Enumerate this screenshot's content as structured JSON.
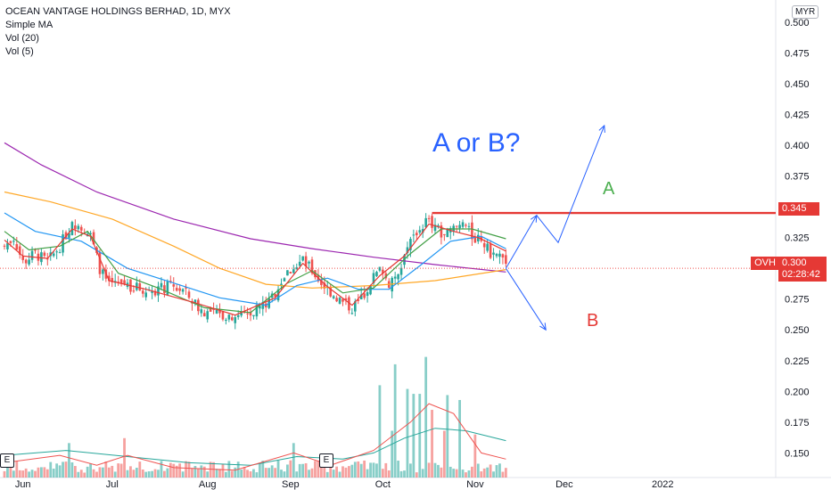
{
  "header": {
    "symbol_title": "OCEAN VANTAGE HOLDINGS BERHAD, 1D, MYX",
    "indicators": [
      "Simple MA",
      "Vol (20)",
      "Vol (5)"
    ],
    "currency": "MYR"
  },
  "annotations": {
    "question": "A or B?",
    "label_a": "A",
    "label_b": "B",
    "earnings_badge": "E"
  },
  "price_tags": {
    "resistance": "0.345",
    "ticker": "OVH",
    "last": "0.300",
    "countdown": "02:28:42"
  },
  "colors": {
    "up": "#26a69a",
    "down": "#ef5350",
    "ma_fast": "#43a047",
    "ma_short": "#e53935",
    "ma_mid": "#2196f3",
    "ma_long": "#ffa726",
    "ma_200": "#9c27b0",
    "question": "#2962ff",
    "label_a": "#4caf50",
    "label_b": "#e53935",
    "resistance": "#e53935",
    "arrows": "#2962ff"
  },
  "chart_data": {
    "type": "candlestick",
    "y_axis": {
      "min": 0.13,
      "max": 0.505,
      "ticks": [
        "0.500",
        "0.475",
        "0.450",
        "0.425",
        "0.400",
        "0.375",
        "0.350",
        "0.325",
        "0.300",
        "0.275",
        "0.250",
        "0.225",
        "0.200",
        "0.175",
        "0.150"
      ]
    },
    "x_axis": {
      "ticks": [
        {
          "label": "Jun",
          "day": 6
        },
        {
          "label": "Jul",
          "day": 35
        },
        {
          "label": "Aug",
          "day": 66
        },
        {
          "label": "Sep",
          "day": 93
        },
        {
          "label": "Oct",
          "day": 123
        },
        {
          "label": "Nov",
          "day": 153
        },
        {
          "label": "Dec",
          "day": 182
        },
        {
          "label": "2022",
          "day": 214
        }
      ],
      "total_days": 238
    },
    "price_anchors": [
      [
        0,
        0.318
      ],
      [
        3,
        0.325
      ],
      [
        6,
        0.305
      ],
      [
        10,
        0.312
      ],
      [
        14,
        0.305
      ],
      [
        18,
        0.318
      ],
      [
        21,
        0.332
      ],
      [
        24,
        0.338
      ],
      [
        28,
        0.326
      ],
      [
        31,
        0.3
      ],
      [
        34,
        0.285
      ],
      [
        38,
        0.288
      ],
      [
        42,
        0.285
      ],
      [
        46,
        0.282
      ],
      [
        50,
        0.283
      ],
      [
        54,
        0.285
      ],
      [
        58,
        0.282
      ],
      [
        61,
        0.274
      ],
      [
        64,
        0.266
      ],
      [
        67,
        0.263
      ],
      [
        71,
        0.262
      ],
      [
        75,
        0.262
      ],
      [
        79,
        0.263
      ],
      [
        82,
        0.268
      ],
      [
        86,
        0.272
      ],
      [
        90,
        0.29
      ],
      [
        94,
        0.302
      ],
      [
        97,
        0.306
      ],
      [
        100,
        0.298
      ],
      [
        103,
        0.288
      ],
      [
        106,
        0.281
      ],
      [
        110,
        0.272
      ],
      [
        113,
        0.268
      ],
      [
        116,
        0.275
      ],
      [
        119,
        0.29
      ],
      [
        122,
        0.298
      ],
      [
        125,
        0.288
      ],
      [
        128,
        0.298
      ],
      [
        131,
        0.318
      ],
      [
        134,
        0.33
      ],
      [
        137,
        0.338
      ],
      [
        140,
        0.335
      ],
      [
        143,
        0.325
      ],
      [
        146,
        0.332
      ],
      [
        149,
        0.337
      ],
      [
        152,
        0.326
      ],
      [
        155,
        0.322
      ],
      [
        158,
        0.312
      ],
      [
        161,
        0.31
      ],
      [
        163,
        0.3
      ]
    ],
    "moving_averages": [
      {
        "name": "SMA 200",
        "color_key": "ma_200",
        "points": [
          [
            0,
            0.402
          ],
          [
            12,
            0.384
          ],
          [
            30,
            0.362
          ],
          [
            55,
            0.34
          ],
          [
            80,
            0.324
          ],
          [
            100,
            0.316
          ],
          [
            120,
            0.309
          ],
          [
            140,
            0.303
          ],
          [
            163,
            0.297
          ]
        ]
      },
      {
        "name": "SMA 50",
        "color_key": "ma_long",
        "points": [
          [
            0,
            0.362
          ],
          [
            15,
            0.354
          ],
          [
            35,
            0.34
          ],
          [
            55,
            0.318
          ],
          [
            70,
            0.3
          ],
          [
            85,
            0.287
          ],
          [
            100,
            0.284
          ],
          [
            120,
            0.286
          ],
          [
            140,
            0.29
          ],
          [
            163,
            0.299
          ]
        ]
      },
      {
        "name": "SMA 20",
        "color_key": "ma_mid",
        "points": [
          [
            0,
            0.345
          ],
          [
            10,
            0.33
          ],
          [
            25,
            0.322
          ],
          [
            40,
            0.3
          ],
          [
            55,
            0.288
          ],
          [
            70,
            0.276
          ],
          [
            85,
            0.27
          ],
          [
            95,
            0.286
          ],
          [
            105,
            0.292
          ],
          [
            115,
            0.283
          ],
          [
            125,
            0.283
          ],
          [
            135,
            0.302
          ],
          [
            145,
            0.322
          ],
          [
            155,
            0.326
          ],
          [
            163,
            0.316
          ]
        ]
      },
      {
        "name": "SMA 10",
        "color_key": "ma_fast",
        "points": [
          [
            0,
            0.33
          ],
          [
            8,
            0.315
          ],
          [
            18,
            0.318
          ],
          [
            27,
            0.33
          ],
          [
            37,
            0.296
          ],
          [
            50,
            0.284
          ],
          [
            65,
            0.268
          ],
          [
            80,
            0.264
          ],
          [
            92,
            0.288
          ],
          [
            100,
            0.298
          ],
          [
            110,
            0.28
          ],
          [
            120,
            0.284
          ],
          [
            132,
            0.312
          ],
          [
            142,
            0.332
          ],
          [
            152,
            0.332
          ],
          [
            163,
            0.324
          ]
        ]
      },
      {
        "name": "SMA 5",
        "color_key": "ma_short",
        "points": [
          [
            0,
            0.323
          ],
          [
            6,
            0.31
          ],
          [
            14,
            0.308
          ],
          [
            22,
            0.332
          ],
          [
            28,
            0.326
          ],
          [
            34,
            0.29
          ],
          [
            46,
            0.283
          ],
          [
            62,
            0.272
          ],
          [
            75,
            0.262
          ],
          [
            88,
            0.276
          ],
          [
            97,
            0.304
          ],
          [
            105,
            0.285
          ],
          [
            113,
            0.27
          ],
          [
            122,
            0.294
          ],
          [
            130,
            0.31
          ],
          [
            138,
            0.336
          ],
          [
            146,
            0.33
          ],
          [
            154,
            0.325
          ],
          [
            163,
            0.314
          ]
        ]
      }
    ],
    "volume_panel": {
      "baseline": 0.13,
      "spikes": [
        [
          21,
          0.158
        ],
        [
          39,
          0.162
        ],
        [
          94,
          0.158
        ],
        [
          122,
          0.205
        ],
        [
          126,
          0.168
        ],
        [
          131,
          0.202
        ],
        [
          135,
          0.198
        ],
        [
          139,
          0.185
        ],
        [
          143,
          0.168
        ],
        [
          148,
          0.193
        ],
        [
          153,
          0.165
        ]
      ],
      "tallest": [
        [
          127,
          0.222
        ],
        [
          137,
          0.228
        ],
        [
          133,
          0.198
        ],
        [
          144,
          0.197
        ]
      ],
      "vol_ma_green": [
        [
          0,
          0.148
        ],
        [
          20,
          0.152
        ],
        [
          40,
          0.147
        ],
        [
          60,
          0.142
        ],
        [
          80,
          0.14
        ],
        [
          95,
          0.147
        ],
        [
          110,
          0.145
        ],
        [
          120,
          0.15
        ],
        [
          130,
          0.162
        ],
        [
          140,
          0.17
        ],
        [
          150,
          0.168
        ],
        [
          163,
          0.16
        ]
      ],
      "vol_ma_red": [
        [
          0,
          0.142
        ],
        [
          18,
          0.148
        ],
        [
          30,
          0.14
        ],
        [
          40,
          0.148
        ],
        [
          55,
          0.138
        ],
        [
          75,
          0.136
        ],
        [
          94,
          0.15
        ],
        [
          106,
          0.14
        ],
        [
          120,
          0.152
        ],
        [
          132,
          0.175
        ],
        [
          138,
          0.19
        ],
        [
          146,
          0.182
        ],
        [
          155,
          0.15
        ],
        [
          163,
          0.145
        ]
      ]
    },
    "resistance_level": {
      "value": 0.345,
      "from_day": 139,
      "to_day": 238
    },
    "last_price": 0.3,
    "scenario_a": [
      [
        163,
        0.3
      ],
      [
        173,
        0.343
      ],
      [
        180,
        0.321
      ],
      [
        195,
        0.416
      ]
    ],
    "scenario_b": [
      [
        163,
        0.3
      ],
      [
        176,
        0.25
      ]
    ]
  }
}
